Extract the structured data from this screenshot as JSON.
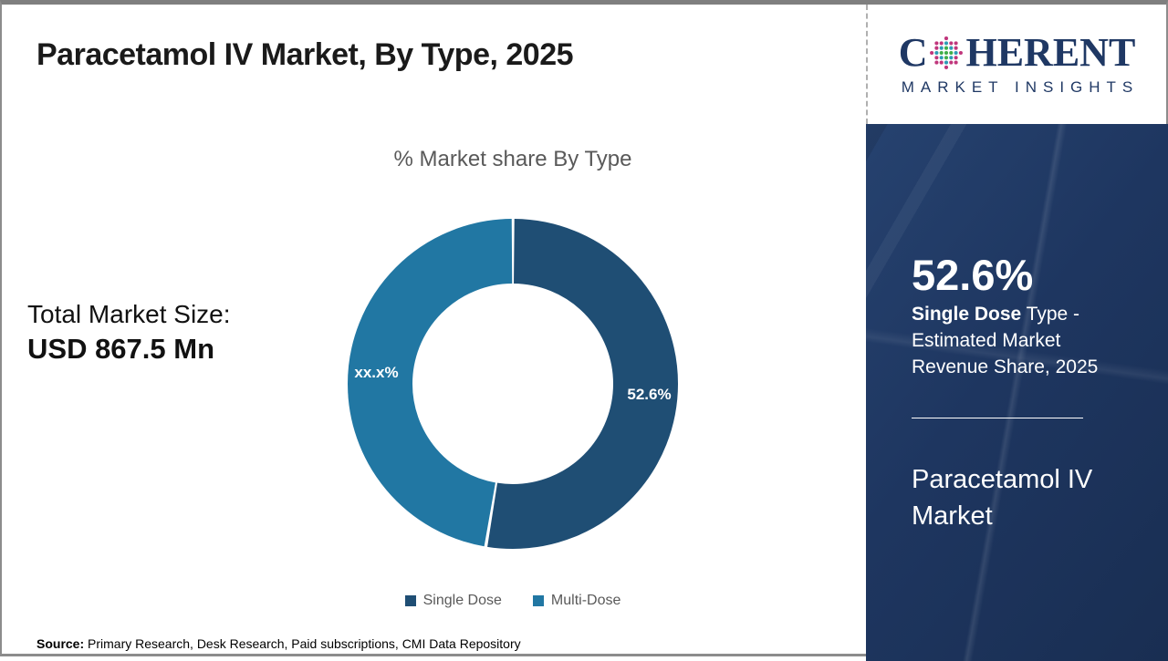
{
  "page": {
    "title": "Paracetamol IV Market, By Type, 2025",
    "source_label": "Source:",
    "source_text": " Primary Research, Desk Research, Paid subscriptions, CMI Data Repository"
  },
  "logo": {
    "word_start": "C",
    "word_end": "HERENT",
    "subtitle": "MARKET INSIGHTS",
    "brand_color": "#1f3864"
  },
  "left_panel": {
    "total_label": "Total Market Size:",
    "total_value": "USD 867.5 Mn"
  },
  "chart_data": {
    "type": "pie",
    "donut": true,
    "title": "% Market share By Type",
    "start_angle_deg": 0,
    "direction": "clockwise",
    "legend_position": "bottom",
    "series": [
      {
        "name": "Single Dose",
        "value": 52.6,
        "label": "52.6%",
        "color": "#1f4e74"
      },
      {
        "name": "Multi-Dose",
        "value": 47.4,
        "label": "xx.x%",
        "color": "#2177a3"
      }
    ]
  },
  "sidebar": {
    "stat_value": "52.6%",
    "stat_bold": "Single Dose",
    "stat_rest": " Type - Estimated Market Revenue Share, 2025",
    "product_name": "Paracetamol IV Market",
    "background_color": "#1e3660"
  }
}
